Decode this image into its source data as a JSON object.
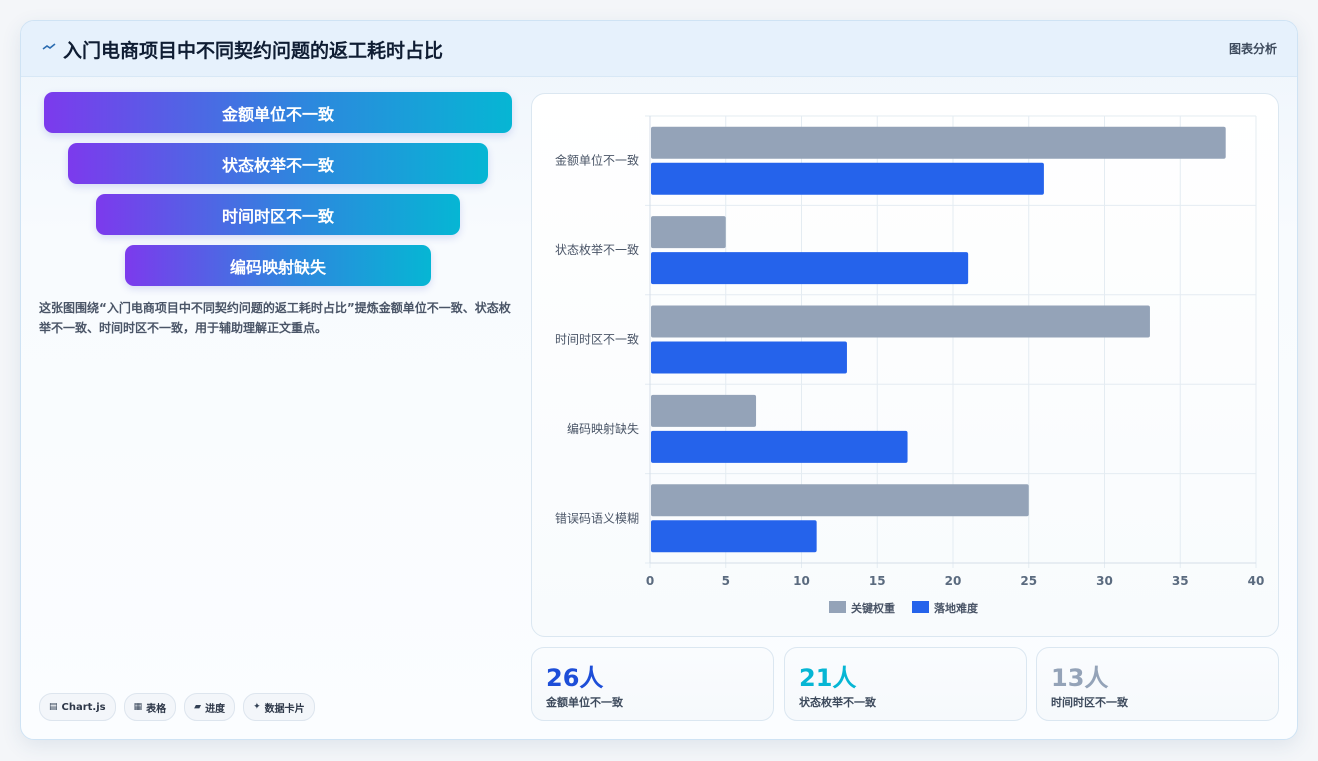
{
  "header": {
    "title": "入门电商项目中不同契约问题的返工耗时占比",
    "tag": "图表分析",
    "icon": "trend-line-icon"
  },
  "funnel": {
    "items": [
      "金额单位不一致",
      "状态枚举不一致",
      "时间时区不一致",
      "编码映射缺失"
    ]
  },
  "description": "这张图围绕“入门电商项目中不同契约问题的返工耗时占比”提炼金额单位不一致、状态枚举不一致、时间时区不一致，用于辅助理解正文重点。",
  "chips": [
    {
      "icon": "chart-icon",
      "glyph": "▤",
      "label": "Chart.js"
    },
    {
      "icon": "table-icon",
      "glyph": "▦",
      "label": "表格"
    },
    {
      "icon": "progress-icon",
      "glyph": "▰",
      "label": "进度"
    },
    {
      "icon": "sparkle-icon",
      "glyph": "✦",
      "label": "数据卡片"
    }
  ],
  "stats": [
    {
      "value": "26人",
      "label": "金额单位不一致",
      "color": "#1d4ed8"
    },
    {
      "value": "21人",
      "label": "状态枚举不一致",
      "color": "#06b6d4"
    },
    {
      "value": "13人",
      "label": "时间时区不一致",
      "color": "#94a3b8"
    }
  ],
  "chart_data": {
    "type": "bar",
    "orientation": "horizontal",
    "categories": [
      "金额单位不一致",
      "状态枚举不一致",
      "时间时区不一致",
      "编码映射缺失",
      "错误码语义模糊"
    ],
    "series": [
      {
        "name": "关键权重",
        "color": "#94a3b8",
        "values": [
          38,
          5,
          33,
          7,
          25
        ]
      },
      {
        "name": "落地难度",
        "color": "#2563eb",
        "values": [
          26,
          21,
          13,
          17,
          11
        ]
      }
    ],
    "xlim": [
      0,
      40
    ],
    "xticks": [
      0,
      5,
      10,
      15,
      20,
      25,
      30,
      35,
      40
    ],
    "grid": true,
    "legend": "bottom"
  }
}
